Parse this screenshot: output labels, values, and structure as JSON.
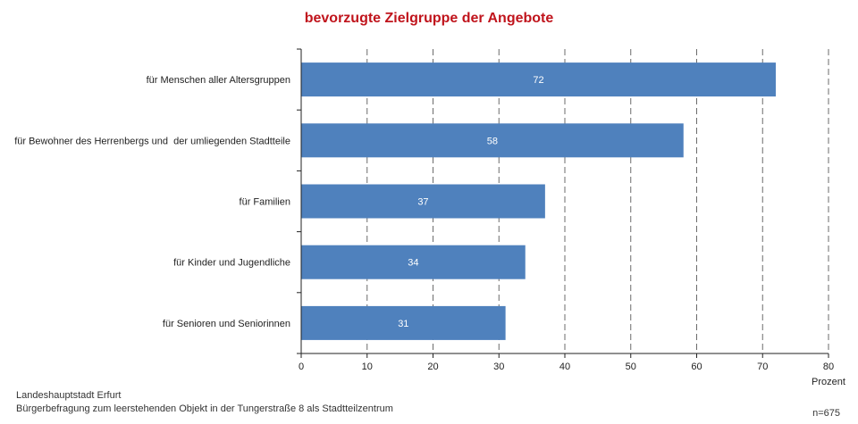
{
  "chart_data": {
    "type": "bar",
    "orientation": "horizontal",
    "title": "bevorzugte Zielgruppe der Angebote",
    "categories": [
      "für Menschen aller Altersgruppen",
      "für Bewohner des Herrenbergs und  der umliegenden Stadtteile",
      "für Familien",
      "für Kinder und Jugendliche",
      "für Senioren und Seniorinnen"
    ],
    "values": [
      72,
      58,
      37,
      34,
      31
    ],
    "xlabel": "Prozent",
    "xlim": [
      0,
      80
    ],
    "xticks": [
      0,
      10,
      20,
      30,
      40,
      50,
      60,
      70,
      80
    ],
    "grid": "vertical dashed",
    "bar_color": "#4f81bd",
    "data_label_color": "#ffffff"
  },
  "footer": {
    "source": "Landeshauptstadt  Erfurt",
    "survey": "Bürgerbefragung  zum leerstehenden  Objekt in der Tungerstraße  8 als Stadtteilzentrum",
    "n_note": "n=675"
  }
}
